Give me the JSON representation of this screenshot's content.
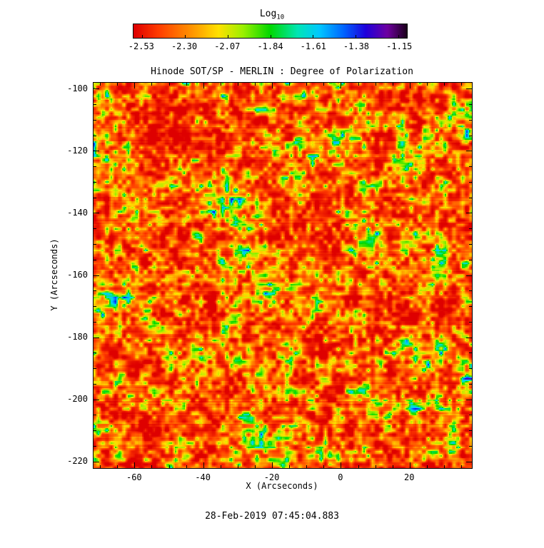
{
  "colorbar": {
    "label": "Log",
    "label_sub": "10",
    "ticks": [
      "-2.53",
      "-2.30",
      "-2.07",
      "-1.84",
      "-1.61",
      "-1.38",
      "-1.15"
    ],
    "tick_values": [
      -2.53,
      -2.3,
      -2.07,
      -1.84,
      -1.61,
      -1.38,
      -1.15
    ],
    "min": -2.575,
    "max": -1.105
  },
  "colormap": [
    [
      0.0,
      "#de0000"
    ],
    [
      0.09,
      "#ff3c00"
    ],
    [
      0.2,
      "#ff8c00"
    ],
    [
      0.31,
      "#ffe100"
    ],
    [
      0.4,
      "#9bf000"
    ],
    [
      0.5,
      "#00d800"
    ],
    [
      0.6,
      "#00e6b4"
    ],
    [
      0.68,
      "#00c8ff"
    ],
    [
      0.77,
      "#0064ff"
    ],
    [
      0.85,
      "#1e00dc"
    ],
    [
      0.93,
      "#6e00a0"
    ],
    [
      1.0,
      "#1e001e"
    ]
  ],
  "chart_data": {
    "type": "heatmap",
    "title": "Hinode SOT/SP - MERLIN : Degree of Polarization",
    "xlabel": "X (Arcseconds)",
    "ylabel": "Y (Arcseconds)",
    "x_range": [
      -72,
      38
    ],
    "y_range": [
      -222,
      -98
    ],
    "x_ticks": [
      -60,
      -40,
      -20,
      0,
      20
    ],
    "x_tick_labels": [
      "-60",
      "-40",
      "-20",
      "0",
      "20"
    ],
    "y_ticks": [
      -100,
      -120,
      -140,
      -160,
      -180,
      -200,
      -220
    ],
    "y_tick_labels": [
      "-100",
      "-120",
      "-140",
      "-160",
      "-180",
      "-200",
      "-220"
    ],
    "minor_tick_step": 5,
    "colorbar": {
      "label": "Log10",
      "orientation": "horizontal",
      "position": "top",
      "min": -2.575,
      "max": -1.105,
      "ticks": [
        -2.53,
        -2.3,
        -2.07,
        -1.84,
        -1.61,
        -1.38,
        -1.15
      ],
      "colormap": "reversed-rainbow (red-orange-yellow-green-cyan-blue-purple-black)"
    },
    "value_description": "Log10 of degree of polarization over the solar surface; field dominated by red/orange speckle near -2.5 to -2.2 with a yellow granular mesh near -2.1, sparse green/cyan patches near -1.8 to -1.6 and rare dark blue spots up to about -1.15",
    "noise": {
      "seed": 7,
      "octaves": [
        [
          3,
          0.45,
          1
        ],
        [
          9,
          0.35,
          2
        ],
        [
          27,
          0.2,
          3
        ]
      ],
      "row_jitter": 0.06
    },
    "value_map": {
      "base": -2.62,
      "scale": 1.6,
      "gamma": 2.6
    }
  },
  "footer": {
    "timestamp": "28-Feb-2019 07:45:04.883"
  }
}
